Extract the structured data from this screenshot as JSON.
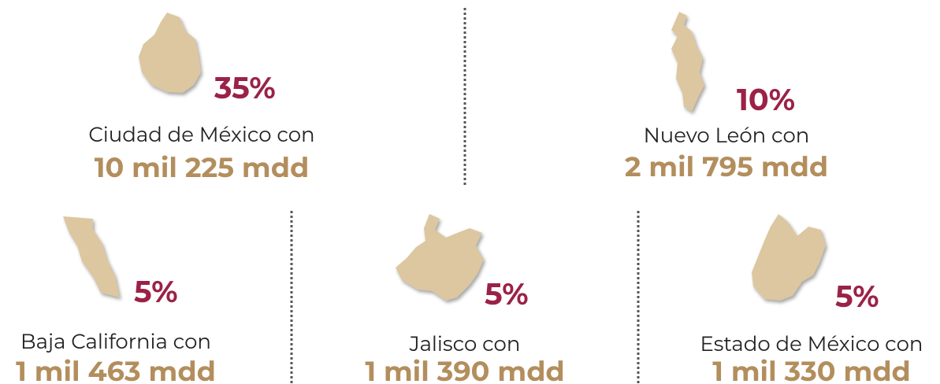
{
  "items": [
    {
      "percent": "35%",
      "name": "Ciudad de México con",
      "amount": "10 mil 225 mdd"
    },
    {
      "percent": "10%",
      "name": "Nuevo León con",
      "amount": "2 mil 795 mdd"
    },
    {
      "percent": "5%",
      "name": "Baja California con",
      "amount": "1 mil 463 mdd"
    },
    {
      "percent": "5%",
      "name": "Jalisco con",
      "amount": "1 mil 390 mdd"
    },
    {
      "percent": "5%",
      "name": "Estado de México con",
      "amount": "1 mil 330 mdd"
    }
  ]
}
